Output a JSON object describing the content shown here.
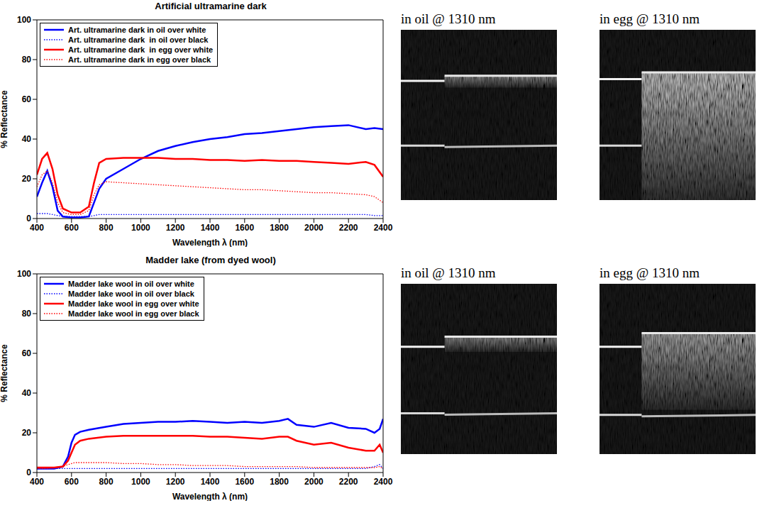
{
  "chart_data": [
    {
      "type": "line",
      "title": "Artificial ultramarine dark",
      "x_label": "Wavelength λ (nm)",
      "y_label": "% Reflectance",
      "x": [
        400,
        430,
        460,
        490,
        520,
        550,
        600,
        650,
        700,
        730,
        760,
        800,
        900,
        1000,
        1100,
        1200,
        1300,
        1400,
        1500,
        1600,
        1700,
        1800,
        1900,
        2000,
        2100,
        2200,
        2300,
        2350,
        2400
      ],
      "series": [
        {
          "name": "Art. ultramarine dark in oil over white",
          "color": "#0000ff",
          "line_style": "solid",
          "values": [
            11,
            18,
            24,
            16,
            4,
            1,
            0.5,
            0.5,
            1,
            8,
            15,
            20,
            25,
            30,
            34,
            36.5,
            38.5,
            40,
            41,
            42.5,
            43,
            44,
            45,
            46,
            46.5,
            47,
            45,
            45.5,
            45
          ]
        },
        {
          "name": "Art. ultramarine dark  in oil over black",
          "color": "#0000ff",
          "line_style": "dotted",
          "values": [
            2.5,
            2.5,
            2.5,
            2,
            1.5,
            1,
            1,
            1,
            1,
            1.5,
            2,
            2,
            2,
            2,
            2,
            2,
            2,
            2,
            2,
            2,
            2,
            2,
            2,
            2,
            2,
            2,
            2,
            1.5,
            1.5
          ]
        },
        {
          "name": "Art. ultramarine dark  in egg over white",
          "color": "#ff0000",
          "line_style": "solid",
          "values": [
            22,
            30,
            33,
            25,
            12,
            5,
            3,
            3,
            6,
            18,
            28,
            30,
            30.5,
            30.5,
            30.5,
            30,
            30,
            29.5,
            29.5,
            29,
            29.5,
            29,
            29,
            28.5,
            28,
            27.5,
            28.5,
            27,
            21
          ]
        },
        {
          "name": "Art. ultramarine dark in egg over black",
          "color": "#ff0000",
          "line_style": "dotted",
          "values": [
            16,
            22,
            24,
            18,
            8,
            3,
            2,
            2,
            4,
            12,
            17,
            18.5,
            18,
            17.5,
            17,
            16.5,
            16,
            15.5,
            15,
            14.5,
            14.5,
            14,
            13.5,
            13,
            13,
            12.5,
            12,
            11,
            8
          ]
        }
      ],
      "xlim": [
        400,
        2400
      ],
      "xticks": [
        400,
        600,
        800,
        1000,
        1200,
        1400,
        1600,
        1800,
        2000,
        2200,
        2400
      ],
      "ylim": [
        0,
        100
      ],
      "yticks": [
        0,
        20,
        40,
        60,
        80,
        100
      ],
      "grid": false,
      "legend": "upper left"
    },
    {
      "type": "line",
      "title": "Madder lake (from dyed wool)",
      "x_label": "Wavelength λ (nm)",
      "y_label": "% Reflectance",
      "x": [
        400,
        450,
        500,
        550,
        580,
        600,
        620,
        650,
        700,
        800,
        900,
        1000,
        1100,
        1200,
        1300,
        1400,
        1500,
        1600,
        1700,
        1800,
        1850,
        1900,
        2000,
        2100,
        2200,
        2300,
        2350,
        2380,
        2400
      ],
      "series": [
        {
          "name": "Madder lake wool in oil over white",
          "color": "#0000ff",
          "line_style": "solid",
          "values": [
            2,
            2,
            2,
            3,
            8,
            15,
            19,
            20.5,
            21.5,
            23,
            24.5,
            25,
            25.5,
            25.5,
            26,
            25.5,
            25,
            25.5,
            25,
            26,
            27,
            24,
            23,
            25,
            22.5,
            22,
            20,
            22,
            27
          ]
        },
        {
          "name": "Madder lake wool in oil over black",
          "color": "#0000ff",
          "line_style": "dotted",
          "values": [
            2,
            2,
            2,
            2,
            2,
            2,
            2,
            2,
            2,
            2,
            2,
            2,
            2,
            2,
            2,
            2,
            2,
            2,
            2,
            2,
            2,
            2,
            2,
            2,
            2,
            2,
            3,
            4,
            2
          ]
        },
        {
          "name": "Madder lake wool in egg over white",
          "color": "#ff0000",
          "line_style": "solid",
          "values": [
            2.5,
            2.5,
            2.5,
            3,
            6,
            10,
            14,
            16,
            17,
            18,
            18.5,
            18.5,
            18.5,
            18.5,
            18.5,
            18,
            18,
            17.5,
            17,
            18,
            18,
            16,
            14,
            15,
            12.5,
            11,
            11,
            14,
            10
          ]
        },
        {
          "name": "Madder lake wool in egg over black",
          "color": "#ff0000",
          "line_style": "dotted",
          "values": [
            2,
            2,
            2.5,
            3,
            4,
            4.5,
            5,
            5,
            5,
            5,
            4.5,
            4.5,
            4,
            4,
            3.5,
            3.5,
            3.5,
            3,
            3,
            3,
            3,
            3,
            2.5,
            2.5,
            2.5,
            2.5,
            2.5,
            3,
            2
          ]
        }
      ],
      "xlim": [
        400,
        2400
      ],
      "xticks": [
        400,
        600,
        800,
        1000,
        1200,
        1400,
        1600,
        1800,
        2000,
        2200,
        2400
      ],
      "ylim": [
        0,
        100
      ],
      "yticks": [
        0,
        20,
        40,
        60,
        80,
        100
      ],
      "grid": false,
      "legend": "upper left"
    }
  ],
  "images": [
    [
      {
        "caption": "in oil @ 1310 nm"
      },
      {
        "caption": "in egg @ 1310 nm"
      }
    ],
    [
      {
        "caption": "in oil @ 1310 nm"
      },
      {
        "caption": "in egg @ 1310 nm"
      }
    ]
  ]
}
